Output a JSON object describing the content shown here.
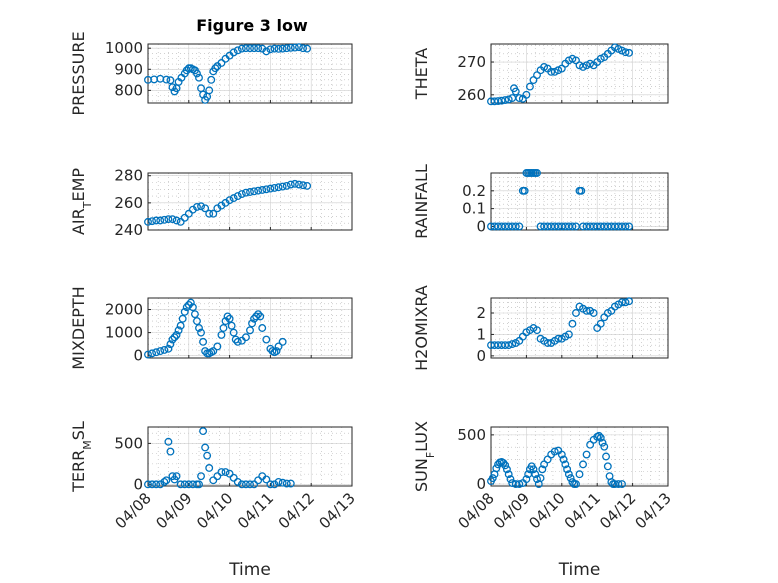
{
  "figure_title": "Figure 3 low",
  "chart_data": [
    {
      "type": "scatter",
      "title": "Figure 3 low",
      "ylabel_parts": [
        [
          "PRESSURE",
          ""
        ]
      ],
      "xlabel": "",
      "x_ticks": [
        "04/08",
        "04/09",
        "04/10",
        "04/11",
        "04/12"
      ],
      "xlim": [
        "2000-04-08",
        "2000-04-12"
      ],
      "ylim": [
        740,
        1020
      ],
      "y_ticks": [
        800,
        900,
        1000
      ],
      "grid": true,
      "color": "#0072BD",
      "series": [
        {
          "x": [
            8.0,
            8.15,
            8.3,
            8.45,
            8.55,
            8.6,
            8.65,
            8.7,
            8.75,
            8.82,
            8.9,
            8.95,
            9.0,
            9.05,
            9.1,
            9.15,
            9.2,
            9.25,
            9.3,
            9.35,
            9.4,
            9.45,
            9.5,
            9.55,
            9.6,
            9.65,
            9.7,
            9.8,
            9.9,
            10.0,
            10.1,
            10.2,
            10.3,
            10.4,
            10.5,
            10.6,
            10.7,
            10.8,
            10.9,
            11.0,
            11.1,
            11.2,
            11.3,
            11.4,
            11.5,
            11.6,
            11.7,
            11.8,
            11.9
          ],
          "y": [
            850,
            852,
            855,
            851,
            848,
            815,
            795,
            810,
            840,
            860,
            880,
            895,
            905,
            905,
            900,
            895,
            880,
            860,
            810,
            780,
            755,
            770,
            800,
            850,
            890,
            905,
            915,
            930,
            950,
            965,
            980,
            990,
            998,
            1000,
            1000,
            1000,
            1000,
            998,
            985,
            995,
            998,
            997,
            998,
            1000,
            1002,
            1003,
            1005,
            1000,
            998
          ]
        }
      ]
    },
    {
      "type": "scatter",
      "ylabel_parts": [
        [
          "THETA",
          ""
        ]
      ],
      "xlabel": "",
      "x_ticks": [
        "04/08",
        "04/09",
        "04/10",
        "04/11",
        "04/12"
      ],
      "ylim": [
        257.5,
        275.5
      ],
      "y_ticks": [
        260,
        270
      ],
      "grid": true,
      "color": "#0072BD",
      "series": [
        {
          "x": [
            8.0,
            8.1,
            8.2,
            8.3,
            8.4,
            8.5,
            8.6,
            8.65,
            8.7,
            8.8,
            8.9,
            9.0,
            9.1,
            9.2,
            9.3,
            9.4,
            9.5,
            9.6,
            9.7,
            9.8,
            9.9,
            10.0,
            10.1,
            10.2,
            10.3,
            10.4,
            10.5,
            10.6,
            10.7,
            10.8,
            10.9,
            11.0,
            11.1,
            11.2,
            11.3,
            11.4,
            11.5,
            11.6,
            11.7,
            11.8,
            11.9
          ],
          "y": [
            258.0,
            258.0,
            258.1,
            258.2,
            258.4,
            258.6,
            259.0,
            262.0,
            261.0,
            259.0,
            258.8,
            260,
            262.5,
            264.5,
            266,
            267.5,
            268.5,
            268,
            267,
            267,
            267.5,
            268,
            269.5,
            270.5,
            271,
            270.5,
            269,
            268.5,
            269,
            269.5,
            269,
            270,
            271,
            271.5,
            272.5,
            273.5,
            274.5,
            274,
            273.5,
            273,
            272.8
          ]
        }
      ]
    },
    {
      "type": "scatter",
      "ylabel_parts": [
        [
          "AIR",
          ""
        ],
        [
          "T",
          "sub"
        ],
        [
          "EMP",
          ""
        ]
      ],
      "xlabel": "",
      "x_ticks": [
        "04/08",
        "04/09",
        "04/10",
        "04/11",
        "04/12"
      ],
      "ylim": [
        240,
        282
      ],
      "y_ticks": [
        240,
        260,
        280
      ],
      "grid": true,
      "color": "#0072BD",
      "series": [
        {
          "x": [
            8.0,
            8.1,
            8.2,
            8.3,
            8.4,
            8.5,
            8.6,
            8.7,
            8.8,
            8.9,
            9.0,
            9.1,
            9.2,
            9.3,
            9.4,
            9.5,
            9.6,
            9.7,
            9.8,
            9.9,
            10.0,
            10.1,
            10.2,
            10.3,
            10.4,
            10.5,
            10.6,
            10.7,
            10.8,
            10.9,
            11.0,
            11.1,
            11.2,
            11.3,
            11.4,
            11.5,
            11.6,
            11.7,
            11.8,
            11.9
          ],
          "y": [
            246,
            246.5,
            247,
            247,
            247.5,
            248,
            248,
            247,
            246,
            249,
            252,
            255,
            257,
            257.5,
            256,
            252,
            252,
            256,
            258,
            260,
            262,
            263.5,
            265,
            266.5,
            267.5,
            268,
            268.5,
            269,
            269.5,
            270,
            270.5,
            271,
            271.5,
            272,
            272.5,
            273.5,
            274,
            273.5,
            273,
            272.5
          ]
        }
      ]
    },
    {
      "type": "scatter",
      "ylabel_parts": [
        [
          "RAINFALL",
          ""
        ]
      ],
      "xlabel": "",
      "x_ticks": [
        "04/08",
        "04/09",
        "04/10",
        "04/11",
        "04/12"
      ],
      "ylim": [
        -0.02,
        0.3
      ],
      "y_ticks": [
        0,
        0.1,
        0.2
      ],
      "y_tick_labels": [
        "0",
        "0.1",
        "0.2"
      ],
      "grid": true,
      "color": "#0072BD",
      "series": [
        {
          "x": [
            8.0,
            8.1,
            8.2,
            8.3,
            8.4,
            8.5,
            8.6,
            8.7,
            8.8,
            8.9,
            8.95,
            9.0,
            9.05,
            9.1,
            9.15,
            9.2,
            9.25,
            9.3,
            9.4,
            9.5,
            9.6,
            9.7,
            9.8,
            9.9,
            10.0,
            10.1,
            10.2,
            10.3,
            10.4,
            10.5,
            10.55,
            10.6,
            10.7,
            10.8,
            10.9,
            11.0,
            11.1,
            11.2,
            11.3,
            11.4,
            11.5,
            11.6,
            11.7,
            11.8,
            11.9
          ],
          "y": [
            0,
            0,
            0,
            0,
            0,
            0,
            0,
            0,
            0,
            0.2,
            0.2,
            0.3,
            0.3,
            0.3,
            0.3,
            0.3,
            0.3,
            0.3,
            0,
            0,
            0,
            0,
            0,
            0,
            0,
            0,
            0,
            0,
            0,
            0.2,
            0.2,
            0,
            0,
            0,
            0,
            0,
            0,
            0,
            0,
            0,
            0,
            0,
            0,
            0,
            0
          ]
        }
      ]
    },
    {
      "type": "scatter",
      "ylabel_parts": [
        [
          "MIXDEPTH",
          ""
        ]
      ],
      "xlabel": "",
      "x_ticks": [
        "04/08",
        "04/09",
        "04/10",
        "04/11",
        "04/12"
      ],
      "ylim": [
        -100,
        2500
      ],
      "y_ticks": [
        0,
        1000,
        2000
      ],
      "grid": true,
      "color": "#0072BD",
      "series": [
        {
          "x": [
            8.0,
            8.1,
            8.2,
            8.3,
            8.4,
            8.5,
            8.55,
            8.6,
            8.65,
            8.7,
            8.75,
            8.8,
            8.85,
            8.9,
            8.95,
            9.0,
            9.05,
            9.1,
            9.15,
            9.2,
            9.25,
            9.3,
            9.35,
            9.4,
            9.45,
            9.5,
            9.55,
            9.6,
            9.7,
            9.8,
            9.85,
            9.9,
            9.95,
            10.0,
            10.05,
            10.1,
            10.15,
            10.2,
            10.3,
            10.4,
            10.5,
            10.55,
            10.6,
            10.65,
            10.7,
            10.75,
            10.8,
            10.9,
            11.0,
            11.05,
            11.1,
            11.15,
            11.2,
            11.3
          ],
          "y": [
            50,
            100,
            150,
            200,
            250,
            300,
            500,
            700,
            800,
            900,
            1100,
            1300,
            1600,
            1900,
            2100,
            2200,
            2300,
            2100,
            1800,
            1500,
            1200,
            1000,
            600,
            200,
            100,
            100,
            150,
            200,
            400,
            900,
            1200,
            1500,
            1700,
            1600,
            1300,
            1000,
            700,
            600,
            650,
            800,
            1100,
            1400,
            1600,
            1700,
            1800,
            1700,
            1200,
            700,
            300,
            200,
            150,
            200,
            400,
            600
          ]
        }
      ]
    },
    {
      "type": "scatter",
      "ylabel_parts": [
        [
          "H2OMIXRA",
          ""
        ]
      ],
      "xlabel": "",
      "x_ticks": [
        "04/08",
        "04/09",
        "04/10",
        "04/11",
        "04/12"
      ],
      "ylim": [
        -0.1,
        2.7
      ],
      "y_ticks": [
        0,
        1,
        2
      ],
      "grid": true,
      "color": "#0072BD",
      "series": [
        {
          "x": [
            8.0,
            8.1,
            8.2,
            8.3,
            8.4,
            8.5,
            8.6,
            8.7,
            8.8,
            8.9,
            9.0,
            9.1,
            9.2,
            9.3,
            9.4,
            9.5,
            9.6,
            9.7,
            9.8,
            9.9,
            10.0,
            10.1,
            10.2,
            10.3,
            10.4,
            10.5,
            10.6,
            10.7,
            10.8,
            10.9,
            11.0,
            11.1,
            11.2,
            11.3,
            11.4,
            11.5,
            11.6,
            11.7,
            11.8,
            11.9
          ],
          "y": [
            0.5,
            0.5,
            0.5,
            0.5,
            0.5,
            0.5,
            0.55,
            0.6,
            0.7,
            0.9,
            1.1,
            1.2,
            1.3,
            1.2,
            0.8,
            0.7,
            0.6,
            0.6,
            0.7,
            0.8,
            0.8,
            0.9,
            1.0,
            1.5,
            2.0,
            2.3,
            2.2,
            2.1,
            2.1,
            2.0,
            1.3,
            1.5,
            1.8,
            2.0,
            2.1,
            2.3,
            2.4,
            2.5,
            2.5,
            2.55
          ]
        }
      ]
    },
    {
      "type": "scatter",
      "ylabel_parts": [
        [
          "TERR",
          ""
        ],
        [
          "M",
          "sub"
        ],
        [
          "SL",
          ""
        ]
      ],
      "xlabel": "Time",
      "x_ticks": [
        "04/08",
        "04/09",
        "04/10",
        "04/11",
        "04/12",
        "04/13"
      ],
      "ylim": [
        -20,
        700
      ],
      "y_ticks": [
        0,
        500
      ],
      "grid": true,
      "color": "#0072BD",
      "series": [
        {
          "x": [
            8.0,
            8.1,
            8.2,
            8.3,
            8.4,
            8.45,
            8.5,
            8.55,
            8.6,
            8.65,
            8.7,
            8.8,
            8.9,
            9.0,
            9.1,
            9.2,
            9.25,
            9.3,
            9.35,
            9.4,
            9.45,
            9.5,
            9.6,
            9.7,
            9.8,
            9.9,
            10.0,
            10.1,
            10.2,
            10.3,
            10.4,
            10.5,
            10.6,
            10.7,
            10.8,
            10.9,
            11.0,
            11.1,
            11.2,
            11.3,
            11.4,
            11.5
          ],
          "y": [
            0,
            0,
            0,
            0,
            30,
            50,
            520,
            400,
            100,
            60,
            100,
            0,
            0,
            0,
            0,
            0,
            0,
            100,
            650,
            450,
            350,
            200,
            50,
            100,
            150,
            150,
            130,
            80,
            30,
            0,
            0,
            0,
            0,
            50,
            100,
            60,
            0,
            0,
            30,
            20,
            10,
            10
          ]
        }
      ]
    },
    {
      "type": "scatter",
      "ylabel_parts": [
        [
          "SUN",
          ""
        ],
        [
          "F",
          "sub"
        ],
        [
          "LUX",
          ""
        ]
      ],
      "xlabel": "Time",
      "x_ticks": [
        "04/08",
        "04/09",
        "04/10",
        "04/11",
        "04/12",
        "04/13"
      ],
      "ylim": [
        -20,
        580
      ],
      "y_ticks": [
        0,
        500
      ],
      "grid": true,
      "color": "#0072BD",
      "series": [
        {
          "x": [
            8.0,
            8.05,
            8.1,
            8.15,
            8.2,
            8.25,
            8.3,
            8.35,
            8.4,
            8.45,
            8.5,
            8.55,
            8.6,
            8.7,
            8.8,
            8.9,
            9.0,
            9.05,
            9.1,
            9.15,
            9.2,
            9.25,
            9.3,
            9.35,
            9.4,
            9.45,
            9.5,
            9.6,
            9.7,
            9.8,
            9.9,
            10.0,
            10.05,
            10.1,
            10.15,
            10.2,
            10.25,
            10.3,
            10.35,
            10.4,
            10.5,
            10.6,
            10.7,
            10.8,
            10.9,
            11.0,
            11.05,
            11.1,
            11.15,
            11.2,
            11.25,
            11.3,
            11.35,
            11.4,
            11.45,
            11.5,
            11.6,
            11.7
          ],
          "y": [
            30,
            60,
            100,
            160,
            200,
            220,
            225,
            215,
            190,
            150,
            100,
            50,
            10,
            0,
            0,
            10,
            50,
            100,
            150,
            180,
            150,
            100,
            50,
            0,
            60,
            150,
            200,
            250,
            300,
            330,
            340,
            300,
            250,
            200,
            150,
            100,
            60,
            20,
            0,
            0,
            100,
            200,
            300,
            400,
            450,
            480,
            490,
            470,
            420,
            380,
            280,
            180,
            80,
            20,
            0,
            0,
            0,
            0
          ]
        }
      ]
    }
  ]
}
